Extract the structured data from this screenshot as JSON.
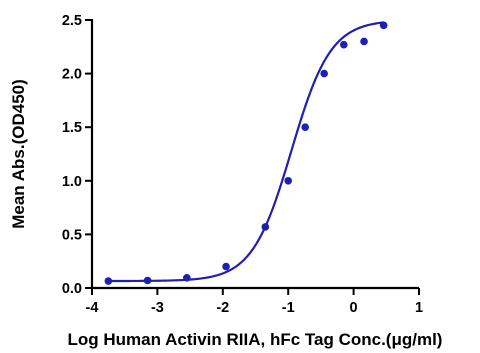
{
  "chart_data": {
    "type": "scatter",
    "title": "",
    "xlabel": "Log Human Activin RIIA, hFc Tag Conc.(μg/ml)",
    "ylabel": "Mean Abs.(OD450)",
    "xlim": [
      -4,
      1
    ],
    "ylim": [
      0,
      2.5
    ],
    "x_ticks": [
      "-4",
      "-3",
      "-2",
      "-1",
      "0",
      "1"
    ],
    "y_ticks": [
      "0.0",
      "0.5",
      "1.0",
      "1.5",
      "2.0",
      "2.5"
    ],
    "grid": false,
    "series": [
      {
        "color": "#1f1fb4",
        "points": [
          {
            "x": -3.75,
            "y": 0.065
          },
          {
            "x": -3.15,
            "y": 0.07
          },
          {
            "x": -2.55,
            "y": 0.095
          },
          {
            "x": -1.95,
            "y": 0.2
          },
          {
            "x": -1.35,
            "y": 0.57
          },
          {
            "x": -1.0,
            "y": 1.0
          },
          {
            "x": -0.74,
            "y": 1.5
          },
          {
            "x": -0.45,
            "y": 2.0
          },
          {
            "x": -0.15,
            "y": 2.27
          },
          {
            "x": 0.16,
            "y": 2.3
          },
          {
            "x": 0.46,
            "y": 2.45
          }
        ],
        "fit_curve": {
          "model": "4PL",
          "bottom": 0.065,
          "top": 2.5,
          "log_ec50": -0.95,
          "hill_slope": 1.45,
          "x_range": [
            -3.75,
            0.46
          ]
        }
      }
    ]
  }
}
